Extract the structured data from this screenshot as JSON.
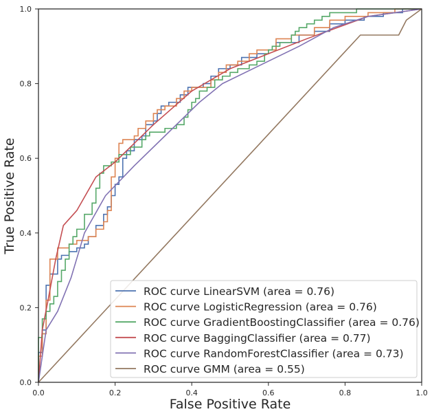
{
  "chart_data": {
    "type": "line",
    "title": "",
    "xlabel": "False Positive Rate",
    "ylabel": "True Positive Rate",
    "xlim": [
      0.0,
      1.0
    ],
    "ylim": [
      0.0,
      1.0
    ],
    "xticks": [
      "0.0",
      "0.2",
      "0.4",
      "0.6",
      "0.8",
      "1.0"
    ],
    "yticks": [
      "0.0",
      "0.2",
      "0.4",
      "0.6",
      "0.8",
      "1.0"
    ],
    "grid": false,
    "legend_position": "bottom-right",
    "series": [
      {
        "name": "ROC curve LinearSVM (area = 0.76)",
        "color": "#4c72b0",
        "step": true,
        "points": [
          [
            0,
            0
          ],
          [
            0,
            0.08
          ],
          [
            0.01,
            0.08
          ],
          [
            0.01,
            0.14
          ],
          [
            0.02,
            0.14
          ],
          [
            0.02,
            0.26
          ],
          [
            0.03,
            0.26
          ],
          [
            0.03,
            0.29
          ],
          [
            0.05,
            0.29
          ],
          [
            0.05,
            0.33
          ],
          [
            0.06,
            0.33
          ],
          [
            0.06,
            0.34
          ],
          [
            0.08,
            0.34
          ],
          [
            0.08,
            0.35
          ],
          [
            0.1,
            0.35
          ],
          [
            0.1,
            0.36
          ],
          [
            0.12,
            0.36
          ],
          [
            0.12,
            0.37
          ],
          [
            0.13,
            0.37
          ],
          [
            0.13,
            0.39
          ],
          [
            0.15,
            0.39
          ],
          [
            0.15,
            0.42
          ],
          [
            0.17,
            0.42
          ],
          [
            0.17,
            0.45
          ],
          [
            0.18,
            0.45
          ],
          [
            0.18,
            0.47
          ],
          [
            0.19,
            0.47
          ],
          [
            0.19,
            0.5
          ],
          [
            0.2,
            0.5
          ],
          [
            0.2,
            0.53
          ],
          [
            0.21,
            0.53
          ],
          [
            0.21,
            0.55
          ],
          [
            0.22,
            0.55
          ],
          [
            0.22,
            0.6
          ],
          [
            0.23,
            0.6
          ],
          [
            0.23,
            0.62
          ],
          [
            0.25,
            0.62
          ],
          [
            0.25,
            0.65
          ],
          [
            0.27,
            0.65
          ],
          [
            0.27,
            0.66
          ],
          [
            0.28,
            0.66
          ],
          [
            0.28,
            0.69
          ],
          [
            0.3,
            0.69
          ],
          [
            0.3,
            0.7
          ],
          [
            0.31,
            0.7
          ],
          [
            0.31,
            0.72
          ],
          [
            0.32,
            0.72
          ],
          [
            0.32,
            0.74
          ],
          [
            0.34,
            0.74
          ],
          [
            0.34,
            0.75
          ],
          [
            0.37,
            0.75
          ],
          [
            0.37,
            0.77
          ],
          [
            0.39,
            0.77
          ],
          [
            0.39,
            0.79
          ],
          [
            0.43,
            0.79
          ],
          [
            0.43,
            0.8
          ],
          [
            0.45,
            0.8
          ],
          [
            0.45,
            0.82
          ],
          [
            0.47,
            0.82
          ],
          [
            0.47,
            0.84
          ],
          [
            0.5,
            0.84
          ],
          [
            0.5,
            0.85
          ],
          [
            0.53,
            0.85
          ],
          [
            0.53,
            0.87
          ],
          [
            0.57,
            0.87
          ],
          [
            0.57,
            0.88
          ],
          [
            0.6,
            0.88
          ],
          [
            0.6,
            0.89
          ],
          [
            0.62,
            0.89
          ],
          [
            0.62,
            0.91
          ],
          [
            0.68,
            0.91
          ],
          [
            0.68,
            0.93
          ],
          [
            0.72,
            0.93
          ],
          [
            0.72,
            0.94
          ],
          [
            0.76,
            0.94
          ],
          [
            0.76,
            0.96
          ],
          [
            0.8,
            0.96
          ],
          [
            0.8,
            0.97
          ],
          [
            0.85,
            0.97
          ],
          [
            0.85,
            0.98
          ],
          [
            0.9,
            0.98
          ],
          [
            0.9,
            0.99
          ],
          [
            0.95,
            0.99
          ],
          [
            0.95,
            1.0
          ],
          [
            1.0,
            1.0
          ]
        ]
      },
      {
        "name": "ROC curve LogisticRegression (area = 0.76)",
        "color": "#dd8452",
        "step": true,
        "points": [
          [
            0,
            0
          ],
          [
            0,
            0.07
          ],
          [
            0.01,
            0.07
          ],
          [
            0.01,
            0.13
          ],
          [
            0.02,
            0.13
          ],
          [
            0.02,
            0.22
          ],
          [
            0.03,
            0.22
          ],
          [
            0.03,
            0.33
          ],
          [
            0.05,
            0.33
          ],
          [
            0.05,
            0.36
          ],
          [
            0.08,
            0.36
          ],
          [
            0.08,
            0.37
          ],
          [
            0.1,
            0.37
          ],
          [
            0.1,
            0.38
          ],
          [
            0.13,
            0.38
          ],
          [
            0.13,
            0.39
          ],
          [
            0.15,
            0.39
          ],
          [
            0.15,
            0.41
          ],
          [
            0.17,
            0.41
          ],
          [
            0.17,
            0.43
          ],
          [
            0.18,
            0.43
          ],
          [
            0.18,
            0.46
          ],
          [
            0.19,
            0.46
          ],
          [
            0.19,
            0.55
          ],
          [
            0.2,
            0.55
          ],
          [
            0.2,
            0.6
          ],
          [
            0.21,
            0.6
          ],
          [
            0.21,
            0.64
          ],
          [
            0.22,
            0.64
          ],
          [
            0.22,
            0.65
          ],
          [
            0.25,
            0.65
          ],
          [
            0.25,
            0.66
          ],
          [
            0.26,
            0.66
          ],
          [
            0.26,
            0.68
          ],
          [
            0.28,
            0.68
          ],
          [
            0.28,
            0.7
          ],
          [
            0.3,
            0.7
          ],
          [
            0.3,
            0.72
          ],
          [
            0.31,
            0.72
          ],
          [
            0.31,
            0.73
          ],
          [
            0.33,
            0.73
          ],
          [
            0.33,
            0.74
          ],
          [
            0.36,
            0.74
          ],
          [
            0.36,
            0.76
          ],
          [
            0.38,
            0.76
          ],
          [
            0.38,
            0.78
          ],
          [
            0.4,
            0.78
          ],
          [
            0.4,
            0.79
          ],
          [
            0.45,
            0.79
          ],
          [
            0.45,
            0.81
          ],
          [
            0.47,
            0.81
          ],
          [
            0.47,
            0.83
          ],
          [
            0.49,
            0.83
          ],
          [
            0.49,
            0.85
          ],
          [
            0.52,
            0.85
          ],
          [
            0.52,
            0.86
          ],
          [
            0.55,
            0.86
          ],
          [
            0.55,
            0.88
          ],
          [
            0.57,
            0.88
          ],
          [
            0.57,
            0.89
          ],
          [
            0.62,
            0.89
          ],
          [
            0.62,
            0.92
          ],
          [
            0.66,
            0.92
          ],
          [
            0.66,
            0.93
          ],
          [
            0.72,
            0.93
          ],
          [
            0.72,
            0.95
          ],
          [
            0.76,
            0.95
          ],
          [
            0.76,
            0.97
          ],
          [
            0.8,
            0.97
          ],
          [
            0.8,
            0.98
          ],
          [
            0.86,
            0.98
          ],
          [
            0.86,
            0.99
          ],
          [
            0.93,
            0.99
          ],
          [
            0.93,
            1.0
          ],
          [
            1.0,
            1.0
          ]
        ]
      },
      {
        "name": "ROC curve GradientBoostingClassifier (area = 0.76)",
        "color": "#55a868",
        "step": true,
        "points": [
          [
            0,
            0
          ],
          [
            0,
            0.12
          ],
          [
            0.01,
            0.12
          ],
          [
            0.01,
            0.17
          ],
          [
            0.02,
            0.17
          ],
          [
            0.02,
            0.19
          ],
          [
            0.03,
            0.19
          ],
          [
            0.03,
            0.21
          ],
          [
            0.04,
            0.21
          ],
          [
            0.04,
            0.23
          ],
          [
            0.05,
            0.23
          ],
          [
            0.05,
            0.27
          ],
          [
            0.06,
            0.27
          ],
          [
            0.06,
            0.3
          ],
          [
            0.07,
            0.3
          ],
          [
            0.07,
            0.33
          ],
          [
            0.08,
            0.33
          ],
          [
            0.08,
            0.37
          ],
          [
            0.09,
            0.37
          ],
          [
            0.09,
            0.39
          ],
          [
            0.1,
            0.39
          ],
          [
            0.1,
            0.41
          ],
          [
            0.12,
            0.41
          ],
          [
            0.12,
            0.45
          ],
          [
            0.14,
            0.45
          ],
          [
            0.14,
            0.48
          ],
          [
            0.15,
            0.48
          ],
          [
            0.15,
            0.52
          ],
          [
            0.16,
            0.52
          ],
          [
            0.16,
            0.56
          ],
          [
            0.17,
            0.56
          ],
          [
            0.17,
            0.58
          ],
          [
            0.19,
            0.58
          ],
          [
            0.19,
            0.59
          ],
          [
            0.21,
            0.59
          ],
          [
            0.21,
            0.61
          ],
          [
            0.24,
            0.61
          ],
          [
            0.24,
            0.63
          ],
          [
            0.27,
            0.63
          ],
          [
            0.27,
            0.65
          ],
          [
            0.28,
            0.65
          ],
          [
            0.28,
            0.66
          ],
          [
            0.29,
            0.66
          ],
          [
            0.29,
            0.67
          ],
          [
            0.33,
            0.67
          ],
          [
            0.33,
            0.68
          ],
          [
            0.36,
            0.68
          ],
          [
            0.36,
            0.69
          ],
          [
            0.38,
            0.69
          ],
          [
            0.38,
            0.71
          ],
          [
            0.39,
            0.71
          ],
          [
            0.39,
            0.73
          ],
          [
            0.4,
            0.73
          ],
          [
            0.4,
            0.75
          ],
          [
            0.41,
            0.75
          ],
          [
            0.41,
            0.76
          ],
          [
            0.42,
            0.76
          ],
          [
            0.42,
            0.78
          ],
          [
            0.44,
            0.78
          ],
          [
            0.44,
            0.79
          ],
          [
            0.46,
            0.79
          ],
          [
            0.46,
            0.81
          ],
          [
            0.48,
            0.81
          ],
          [
            0.48,
            0.82
          ],
          [
            0.5,
            0.82
          ],
          [
            0.5,
            0.83
          ],
          [
            0.52,
            0.83
          ],
          [
            0.52,
            0.84
          ],
          [
            0.55,
            0.84
          ],
          [
            0.55,
            0.85
          ],
          [
            0.57,
            0.85
          ],
          [
            0.57,
            0.86
          ],
          [
            0.59,
            0.86
          ],
          [
            0.59,
            0.88
          ],
          [
            0.6,
            0.88
          ],
          [
            0.6,
            0.89
          ],
          [
            0.61,
            0.89
          ],
          [
            0.61,
            0.9
          ],
          [
            0.63,
            0.9
          ],
          [
            0.63,
            0.91
          ],
          [
            0.66,
            0.91
          ],
          [
            0.66,
            0.93
          ],
          [
            0.67,
            0.93
          ],
          [
            0.67,
            0.94
          ],
          [
            0.68,
            0.94
          ],
          [
            0.68,
            0.95
          ],
          [
            0.7,
            0.95
          ],
          [
            0.7,
            0.96
          ],
          [
            0.72,
            0.96
          ],
          [
            0.72,
            0.97
          ],
          [
            0.74,
            0.97
          ],
          [
            0.74,
            0.98
          ],
          [
            0.76,
            0.98
          ],
          [
            0.76,
            0.99
          ],
          [
            0.83,
            0.99
          ],
          [
            0.83,
            1.0
          ],
          [
            1.0,
            1.0
          ]
        ]
      },
      {
        "name": "ROC curve BaggingClassifier (area = 0.77)",
        "color": "#c44e52",
        "step": false,
        "points": [
          [
            0,
            0
          ],
          [
            0.01,
            0.14
          ],
          [
            0.025,
            0.22
          ],
          [
            0.045,
            0.33
          ],
          [
            0.065,
            0.42
          ],
          [
            0.1,
            0.46
          ],
          [
            0.15,
            0.55
          ],
          [
            0.2,
            0.59
          ],
          [
            0.25,
            0.64
          ],
          [
            0.3,
            0.69
          ],
          [
            0.4,
            0.78
          ],
          [
            0.5,
            0.84
          ],
          [
            0.6,
            0.88
          ],
          [
            0.7,
            0.92
          ],
          [
            0.78,
            0.95
          ],
          [
            0.86,
            0.98
          ],
          [
            0.93,
            0.99
          ],
          [
            1.0,
            1.0
          ]
        ]
      },
      {
        "name": "ROC curve RandomForestClassifier (area = 0.73)",
        "color": "#8172b3",
        "step": false,
        "points": [
          [
            0,
            0
          ],
          [
            0.02,
            0.14
          ],
          [
            0.05,
            0.19
          ],
          [
            0.085,
            0.28
          ],
          [
            0.12,
            0.4
          ],
          [
            0.175,
            0.5
          ],
          [
            0.25,
            0.58
          ],
          [
            0.33,
            0.66
          ],
          [
            0.42,
            0.75
          ],
          [
            0.48,
            0.8
          ],
          [
            0.58,
            0.85
          ],
          [
            0.68,
            0.9
          ],
          [
            0.77,
            0.95
          ],
          [
            0.86,
            0.98
          ],
          [
            0.93,
            0.99
          ],
          [
            1.0,
            1.0
          ]
        ]
      },
      {
        "name": "ROC curve GMM (area = 0.55)",
        "color": "#937860",
        "step": false,
        "points": [
          [
            0,
            0
          ],
          [
            0.84,
            0.93
          ],
          [
            0.9,
            0.93
          ],
          [
            0.94,
            0.93
          ],
          [
            0.96,
            0.97
          ],
          [
            0.98,
            0.985
          ],
          [
            1.0,
            1.0
          ]
        ]
      }
    ]
  }
}
